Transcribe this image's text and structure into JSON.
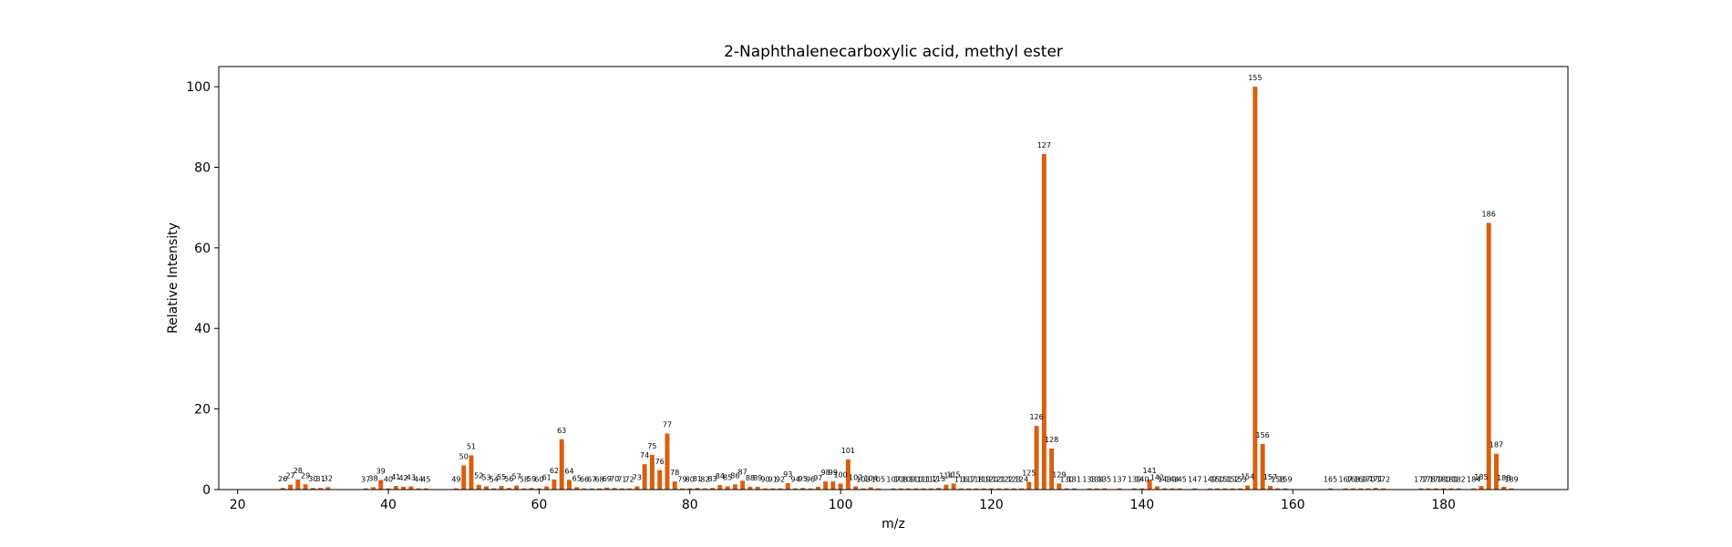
{
  "chart_data": {
    "type": "bar",
    "title": "2-Naphthalenecarboxylic acid, methyl ester",
    "xlabel": "m/z",
    "ylabel": "Relative Intensity",
    "xlim": [
      17.5,
      196.5
    ],
    "ylim": [
      0,
      105
    ],
    "xticks": [
      20,
      40,
      60,
      80,
      100,
      120,
      140,
      160,
      180
    ],
    "yticks": [
      0,
      20,
      40,
      60,
      80,
      100
    ],
    "bar_color": "#d95f0e",
    "grid": false,
    "points": [
      {
        "x": 26,
        "y": 0.4
      },
      {
        "x": 27,
        "y": 1.2
      },
      {
        "x": 28,
        "y": 2.5
      },
      {
        "x": 29,
        "y": 1.3
      },
      {
        "x": 30,
        "y": 0.4
      },
      {
        "x": 31,
        "y": 0.4
      },
      {
        "x": 32,
        "y": 0.6
      },
      {
        "x": 37,
        "y": 0.3
      },
      {
        "x": 38,
        "y": 0.6
      },
      {
        "x": 39,
        "y": 2.4
      },
      {
        "x": 40,
        "y": 0.3
      },
      {
        "x": 41,
        "y": 0.9
      },
      {
        "x": 42,
        "y": 0.7
      },
      {
        "x": 43,
        "y": 0.8
      },
      {
        "x": 44,
        "y": 0.3
      },
      {
        "x": 45,
        "y": 0.3
      },
      {
        "x": 49,
        "y": 0.3
      },
      {
        "x": 50,
        "y": 6.0
      },
      {
        "x": 51,
        "y": 8.5
      },
      {
        "x": 52,
        "y": 1.2
      },
      {
        "x": 53,
        "y": 0.8
      },
      {
        "x": 54,
        "y": 0.3
      },
      {
        "x": 55,
        "y": 0.9
      },
      {
        "x": 56,
        "y": 0.4
      },
      {
        "x": 57,
        "y": 1.0
      },
      {
        "x": 58,
        "y": 0.3
      },
      {
        "x": 59,
        "y": 0.4
      },
      {
        "x": 60,
        "y": 0.3
      },
      {
        "x": 61,
        "y": 0.8
      },
      {
        "x": 62,
        "y": 2.5
      },
      {
        "x": 63,
        "y": 12.5
      },
      {
        "x": 64,
        "y": 2.4
      },
      {
        "x": 65,
        "y": 0.6
      },
      {
        "x": 66,
        "y": 0.3
      },
      {
        "x": 67,
        "y": 0.3
      },
      {
        "x": 68,
        "y": 0.3
      },
      {
        "x": 69,
        "y": 0.5
      },
      {
        "x": 70,
        "y": 0.4
      },
      {
        "x": 71,
        "y": 0.3
      },
      {
        "x": 72,
        "y": 0.3
      },
      {
        "x": 73,
        "y": 0.8
      },
      {
        "x": 74,
        "y": 6.3
      },
      {
        "x": 75,
        "y": 8.6
      },
      {
        "x": 76,
        "y": 4.8
      },
      {
        "x": 77,
        "y": 13.9
      },
      {
        "x": 78,
        "y": 2.0
      },
      {
        "x": 79,
        "y": 0.3
      },
      {
        "x": 80,
        "y": 0.3
      },
      {
        "x": 81,
        "y": 0.4
      },
      {
        "x": 82,
        "y": 0.3
      },
      {
        "x": 83,
        "y": 0.4
      },
      {
        "x": 84,
        "y": 1.1
      },
      {
        "x": 85,
        "y": 0.8
      },
      {
        "x": 86,
        "y": 1.3
      },
      {
        "x": 87,
        "y": 2.2
      },
      {
        "x": 88,
        "y": 0.7
      },
      {
        "x": 89,
        "y": 0.7
      },
      {
        "x": 90,
        "y": 0.3
      },
      {
        "x": 91,
        "y": 0.3
      },
      {
        "x": 92,
        "y": 0.3
      },
      {
        "x": 93,
        "y": 1.6
      },
      {
        "x": 94,
        "y": 0.3
      },
      {
        "x": 95,
        "y": 0.4
      },
      {
        "x": 96,
        "y": 0.3
      },
      {
        "x": 97,
        "y": 0.7
      },
      {
        "x": 98,
        "y": 2.0
      },
      {
        "x": 99,
        "y": 2.0
      },
      {
        "x": 100,
        "y": 1.5
      },
      {
        "x": 101,
        "y": 7.5
      },
      {
        "x": 102,
        "y": 0.8
      },
      {
        "x": 103,
        "y": 0.3
      },
      {
        "x": 104,
        "y": 0.6
      },
      {
        "x": 105,
        "y": 0.3
      },
      {
        "x": 107,
        "y": 0.3
      },
      {
        "x": 108,
        "y": 0.3
      },
      {
        "x": 109,
        "y": 0.3
      },
      {
        "x": 110,
        "y": 0.3
      },
      {
        "x": 111,
        "y": 0.3
      },
      {
        "x": 112,
        "y": 0.3
      },
      {
        "x": 113,
        "y": 0.4
      },
      {
        "x": 114,
        "y": 1.2
      },
      {
        "x": 115,
        "y": 1.5
      },
      {
        "x": 116,
        "y": 0.3
      },
      {
        "x": 117,
        "y": 0.3
      },
      {
        "x": 118,
        "y": 0.3
      },
      {
        "x": 119,
        "y": 0.3
      },
      {
        "x": 120,
        "y": 0.3
      },
      {
        "x": 121,
        "y": 0.3
      },
      {
        "x": 122,
        "y": 0.3
      },
      {
        "x": 123,
        "y": 0.3
      },
      {
        "x": 124,
        "y": 0.3
      },
      {
        "x": 125,
        "y": 1.9
      },
      {
        "x": 126,
        "y": 15.8
      },
      {
        "x": 127,
        "y": 83.3
      },
      {
        "x": 128,
        "y": 10.2
      },
      {
        "x": 129,
        "y": 1.5
      },
      {
        "x": 130,
        "y": 0.3
      },
      {
        "x": 131,
        "y": 0.3
      },
      {
        "x": 133,
        "y": 0.3
      },
      {
        "x": 134,
        "y": 0.3
      },
      {
        "x": 135,
        "y": 0.3
      },
      {
        "x": 137,
        "y": 0.3
      },
      {
        "x": 139,
        "y": 0.3
      },
      {
        "x": 140,
        "y": 0.3
      },
      {
        "x": 141,
        "y": 2.5
      },
      {
        "x": 142,
        "y": 0.8
      },
      {
        "x": 143,
        "y": 0.3
      },
      {
        "x": 144,
        "y": 0.3
      },
      {
        "x": 145,
        "y": 0.3
      },
      {
        "x": 147,
        "y": 0.3
      },
      {
        "x": 149,
        "y": 0.3
      },
      {
        "x": 150,
        "y": 0.3
      },
      {
        "x": 151,
        "y": 0.3
      },
      {
        "x": 152,
        "y": 0.3
      },
      {
        "x": 153,
        "y": 0.3
      },
      {
        "x": 154,
        "y": 1.0
      },
      {
        "x": 155,
        "y": 100.0
      },
      {
        "x": 156,
        "y": 11.3
      },
      {
        "x": 157,
        "y": 0.9
      },
      {
        "x": 158,
        "y": 0.3
      },
      {
        "x": 159,
        "y": 0.3
      },
      {
        "x": 165,
        "y": 0.3
      },
      {
        "x": 167,
        "y": 0.3
      },
      {
        "x": 168,
        "y": 0.3
      },
      {
        "x": 169,
        "y": 0.3
      },
      {
        "x": 170,
        "y": 0.3
      },
      {
        "x": 171,
        "y": 0.4
      },
      {
        "x": 172,
        "y": 0.3
      },
      {
        "x": 177,
        "y": 0.3
      },
      {
        "x": 178,
        "y": 0.3
      },
      {
        "x": 179,
        "y": 0.3
      },
      {
        "x": 180,
        "y": 0.3
      },
      {
        "x": 181,
        "y": 0.3
      },
      {
        "x": 182,
        "y": 0.3
      },
      {
        "x": 184,
        "y": 0.3
      },
      {
        "x": 185,
        "y": 0.9
      },
      {
        "x": 186,
        "y": 66.2
      },
      {
        "x": 187,
        "y": 8.9
      },
      {
        "x": 188,
        "y": 0.7
      },
      {
        "x": 189,
        "y": 0.3
      }
    ]
  }
}
